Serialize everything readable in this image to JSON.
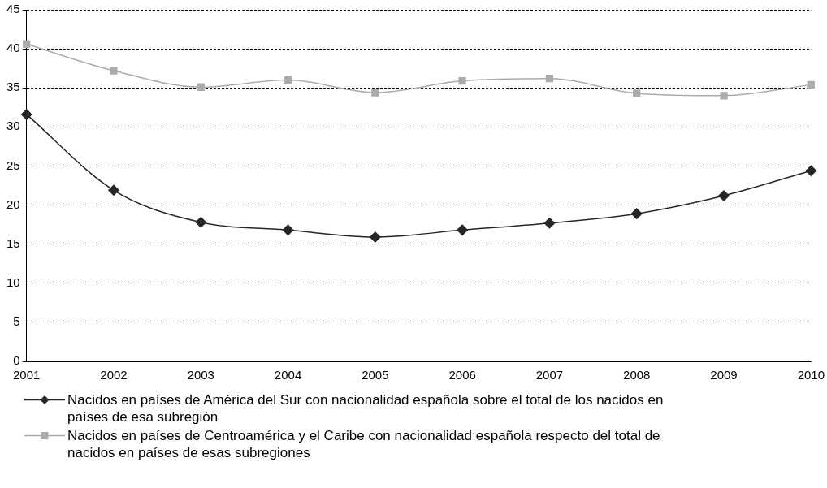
{
  "chart_data": {
    "type": "line",
    "categories": [
      "2001",
      "2002",
      "2003",
      "2004",
      "2005",
      "2006",
      "2007",
      "2008",
      "2009",
      "2010"
    ],
    "series": [
      {
        "name": "Nacidos en países de América del Sur con nacionalidad española sobre el total de los nacidos en países de esa subregión",
        "color": "#262626",
        "marker": "diamond",
        "values": [
          31.6,
          21.9,
          17.8,
          16.8,
          15.9,
          16.8,
          17.7,
          18.9,
          21.2,
          24.4
        ]
      },
      {
        "name": "Nacidos en países de Centroamérica y el Caribe con nacionalidad española respecto del total de nacidos en países de esas subregiones",
        "color": "#ababab",
        "marker": "square",
        "values": [
          40.6,
          37.2,
          35.1,
          36.0,
          34.4,
          35.9,
          36.2,
          34.3,
          34.0,
          35.4
        ]
      }
    ],
    "ylim": [
      0,
      45
    ],
    "yticks": [
      0,
      5,
      10,
      15,
      20,
      25,
      30,
      35,
      40,
      45
    ],
    "grid": "y",
    "legend": "bottom"
  }
}
